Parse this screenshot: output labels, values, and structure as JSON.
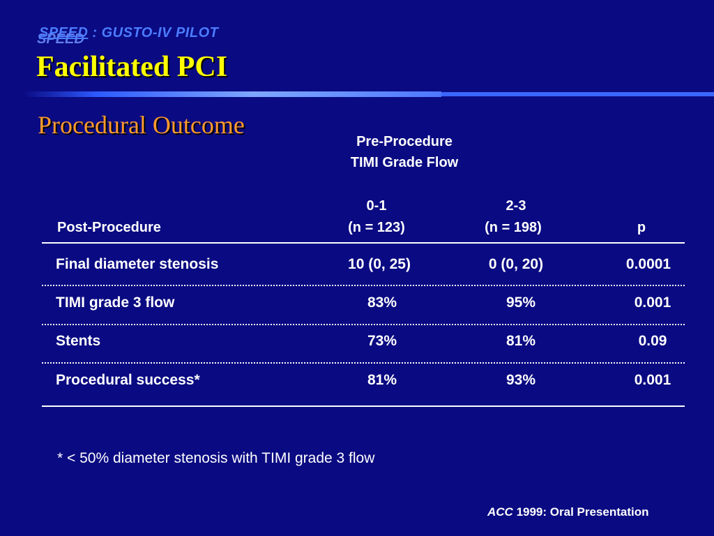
{
  "header": {
    "program": "SPEED",
    "trial_suffix": " : GUSTO-IV PILOT",
    "program_shadow": "SPEED",
    "title": "Facilitated PCI",
    "section": "Procedural Outcome"
  },
  "table": {
    "group_header_line1": "Pre-Procedure",
    "group_header_line2": "TIMI Grade Flow",
    "row_header": "Post-Procedure",
    "col1_grade": "0-1",
    "col1_n": "(n = 123)",
    "col2_grade": "2-3",
    "col2_n": "(n = 198)",
    "p_header": "p",
    "rows": [
      {
        "label": "Final diameter stenosis",
        "v1": "10 (0, 25)",
        "v2": "0 (0, 20)",
        "p": "0.0001"
      },
      {
        "label": "TIMI grade 3 flow",
        "v1": "83%",
        "v2": "95%",
        "p": "0.001"
      },
      {
        "label": "Stents",
        "v1": "73%",
        "v2": "81%",
        "p": "0.09"
      },
      {
        "label": "Procedural success*",
        "v1": "81%",
        "v2": "93%",
        "p": "0.001"
      }
    ]
  },
  "footnote": "* < 50% diameter stenosis with TIMI grade 3 flow",
  "citation": {
    "source": "ACC",
    "rest": " 1999: Oral Presentation"
  }
}
